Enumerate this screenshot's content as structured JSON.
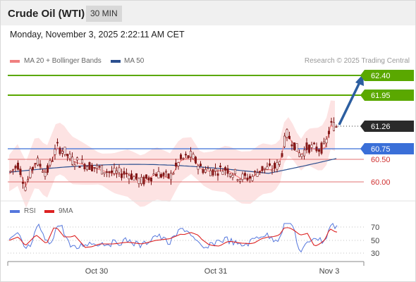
{
  "header": {
    "title": "Crude Oil (WTI)",
    "timeframe": "30 MIN"
  },
  "datetime": "Monday, November 3, 2025 2:22:11 AM CET",
  "legend_main": [
    {
      "label": "MA 20 + Bollinger Bands",
      "color": "#f08080"
    },
    {
      "label": "MA 50",
      "color": "#2b4f8f"
    }
  ],
  "credit": "Research © 2025 Trading Central",
  "levels": [
    {
      "value": "62.40",
      "color": "#5aa800",
      "style": "resistance"
    },
    {
      "value": "61.95",
      "color": "#5aa800",
      "style": "resistance"
    },
    {
      "value": "61.26",
      "color": "#222222",
      "style": "last-price"
    },
    {
      "value": "60.75",
      "color": "#3a6fd8",
      "style": "pivot"
    },
    {
      "value": "60.50",
      "color": "#d03030",
      "style": "support"
    },
    {
      "value": "60.00",
      "color": "#d03030",
      "style": "support"
    }
  ],
  "legend_rsi": [
    {
      "label": "RSI",
      "color": "#5577dd"
    },
    {
      "label": "9MA",
      "color": "#dd2222"
    }
  ],
  "rsi_levels": [
    "70",
    "50",
    "30"
  ],
  "x_labels": [
    "Oct 30",
    "Oct 31",
    "Nov 3"
  ]
}
